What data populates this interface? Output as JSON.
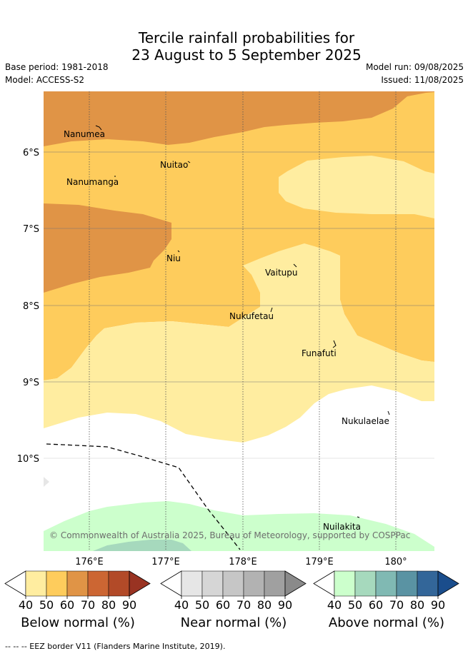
{
  "header": {
    "title_line1": "Tercile rainfall probabilities for",
    "title_line2": "23 August to 5 September 2025",
    "base_period": "Base period: 1981-2018",
    "model": "Model: ACCESS-S2",
    "model_run": "Model run: 09/08/2025",
    "issued": "Issued: 11/08/2025"
  },
  "map": {
    "lat_labels": [
      "6°S",
      "7°S",
      "8°S",
      "9°S",
      "10°S"
    ],
    "lon_labels": [
      "176°E",
      "177°E",
      "178°E",
      "179°E",
      "180°"
    ],
    "places": [
      "Nanumea",
      "Nuitao",
      "Nanumanga",
      "Niu",
      "Vaitupu",
      "Nukufetau",
      "Funafuti",
      "Nukulaelae",
      "Nuilakita"
    ],
    "copyright": "© Commonwealth of Australia 2025, Bureau of Meteorology, supported by COSPPac"
  },
  "legend": {
    "ticks": [
      "40",
      "50",
      "60",
      "70",
      "80",
      "90"
    ],
    "below_label": "Below normal (%)",
    "near_label": "Near normal (%)",
    "above_label": "Above normal (%)",
    "below_colors": [
      "#ffeda0",
      "#fecc5c",
      "#e09446",
      "#cc6633",
      "#b24a28",
      "#993322"
    ],
    "near_colors": [
      "#e6e6e6",
      "#d6d6d6",
      "#c6c6c6",
      "#b2b2b2",
      "#a0a0a0",
      "#8a8a8a"
    ],
    "above_colors": [
      "#ccffcc",
      "#a6d9bd",
      "#80b9b3",
      "#5a93a3",
      "#336699",
      "#1a4d8c"
    ]
  },
  "footer": {
    "eez_note": "--  --  -- EEZ border V11 (Flanders Marine Institute, 2019)."
  }
}
